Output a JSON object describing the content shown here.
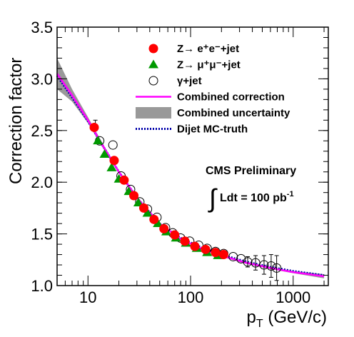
{
  "chart_data": {
    "type": "scatter",
    "xlabel": "p",
    "xlabel_sub": "T",
    "xlabel_unit": " (GeV/c)",
    "ylabel": "Correction factor",
    "x_scale": "log",
    "xlim": [
      5,
      2200
    ],
    "ylim": [
      1.0,
      3.5
    ],
    "x_ticks": [
      {
        "value": 10,
        "label": "10"
      },
      {
        "value": 100,
        "label": "100"
      },
      {
        "value": 1000,
        "label": "1000"
      }
    ],
    "y_ticks": [
      {
        "value": 1.0,
        "label": "1.0"
      },
      {
        "value": 1.5,
        "label": "1.5"
      },
      {
        "value": 2.0,
        "label": "2.0"
      },
      {
        "value": 2.5,
        "label": "2.5"
      },
      {
        "value": 3.0,
        "label": "3.0"
      },
      {
        "value": 3.5,
        "label": "3.5"
      }
    ],
    "grid": false,
    "legend_position": "top-right",
    "annotation_title": "CMS Preliminary",
    "annotation_lumi": "Ldt = 100 pb",
    "annotation_lumi_sup": "-1",
    "legend": [
      {
        "key": "zee",
        "text": "Z→ e⁺e⁻+jet"
      },
      {
        "key": "zmm",
        "text": "Z→ μ⁺μ⁻+jet"
      },
      {
        "key": "gam",
        "text": "γ+jet"
      },
      {
        "key": "combined",
        "text": "Combined correction"
      },
      {
        "key": "uncert",
        "text": "Combined uncertainty"
      },
      {
        "key": "dijet",
        "text": "Dijet MC-truth"
      }
    ],
    "colors": {
      "zee": "#ff0000",
      "zmm": "#009900",
      "combined": "#ff00ff",
      "uncert": "#999999",
      "dijet": "#0000aa"
    },
    "series": [
      {
        "key": "zee",
        "marker": "circle",
        "points": [
          [
            11.5,
            2.53
          ],
          [
            18,
            2.21
          ],
          [
            22.5,
            2.02
          ],
          [
            28,
            1.87
          ],
          [
            35,
            1.75
          ],
          [
            44,
            1.64
          ],
          [
            55,
            1.55
          ],
          [
            70,
            1.49
          ],
          [
            88,
            1.43
          ],
          [
            110,
            1.38
          ],
          [
            140,
            1.35
          ],
          [
            175,
            1.32
          ],
          [
            210,
            1.3
          ]
        ]
      },
      {
        "key": "zmm",
        "marker": "triangle",
        "points": [
          [
            12.5,
            2.4
          ],
          [
            14.5,
            2.27
          ],
          [
            17,
            2.14
          ],
          [
            20,
            2.03
          ],
          [
            25,
            1.91
          ],
          [
            31,
            1.8
          ],
          [
            38,
            1.7
          ],
          [
            48,
            1.6
          ],
          [
            58,
            1.52
          ],
          [
            72,
            1.46
          ],
          [
            90,
            1.41
          ],
          [
            115,
            1.36
          ],
          [
            145,
            1.32
          ],
          [
            185,
            1.29
          ]
        ]
      },
      {
        "key": "gam",
        "marker": "open-circle",
        "points": [
          [
            13,
            2.4
          ],
          [
            17.5,
            2.36
          ],
          [
            21,
            2.06
          ],
          [
            26,
            1.93
          ],
          [
            32,
            1.81
          ],
          [
            38,
            1.74
          ],
          [
            47,
            1.66
          ],
          [
            57,
            1.56
          ],
          [
            67,
            1.51
          ],
          [
            80,
            1.46
          ],
          [
            98,
            1.43
          ],
          [
            120,
            1.39
          ],
          [
            145,
            1.36
          ],
          [
            175,
            1.33
          ],
          [
            210,
            1.31
          ],
          [
            260,
            1.28
          ],
          [
            310,
            1.26
          ],
          [
            360,
            1.23
          ],
          [
            430,
            1.22
          ],
          [
            520,
            1.2
          ],
          [
            610,
            1.19
          ],
          [
            690,
            1.17
          ]
        ],
        "errors": [
          [
            11.8,
            2.55,
            0.05
          ],
          [
            360,
            1.23,
            0.05
          ],
          [
            430,
            1.22,
            0.07
          ],
          [
            520,
            1.2,
            0.09
          ],
          [
            610,
            1.19,
            0.11
          ],
          [
            690,
            1.17,
            0.12
          ]
        ]
      },
      {
        "key": "combined",
        "marker": "line",
        "points": [
          [
            5,
            3.05
          ],
          [
            7,
            2.84
          ],
          [
            10,
            2.6
          ],
          [
            14,
            2.35
          ],
          [
            20,
            2.1
          ],
          [
            30,
            1.85
          ],
          [
            50,
            1.6
          ],
          [
            80,
            1.45
          ],
          [
            120,
            1.37
          ],
          [
            200,
            1.29
          ],
          [
            350,
            1.22
          ],
          [
            600,
            1.17
          ],
          [
            1000,
            1.13
          ],
          [
            2000,
            1.09
          ]
        ]
      },
      {
        "key": "dijet",
        "marker": "dotted-line",
        "points": [
          [
            5,
            3.03
          ],
          [
            7,
            2.82
          ],
          [
            10,
            2.59
          ],
          [
            14,
            2.35
          ],
          [
            20,
            2.1
          ],
          [
            30,
            1.85
          ],
          [
            50,
            1.6
          ],
          [
            80,
            1.46
          ],
          [
            120,
            1.38
          ],
          [
            200,
            1.3
          ],
          [
            350,
            1.23
          ],
          [
            600,
            1.18
          ],
          [
            1000,
            1.14
          ],
          [
            2000,
            1.1
          ]
        ]
      }
    ],
    "uncertainty_band": {
      "x": [
        5,
        7,
        10,
        14,
        20,
        30,
        50,
        80,
        120,
        200,
        350,
        600,
        1000,
        2000
      ],
      "lower": [
        2.9,
        2.78,
        2.57,
        2.33,
        2.09,
        1.84,
        1.59,
        1.44,
        1.36,
        1.28,
        1.21,
        1.16,
        1.12,
        1.07
      ],
      "upper": [
        3.2,
        2.9,
        2.63,
        2.37,
        2.11,
        1.86,
        1.61,
        1.46,
        1.38,
        1.3,
        1.23,
        1.18,
        1.14,
        1.11
      ]
    }
  }
}
